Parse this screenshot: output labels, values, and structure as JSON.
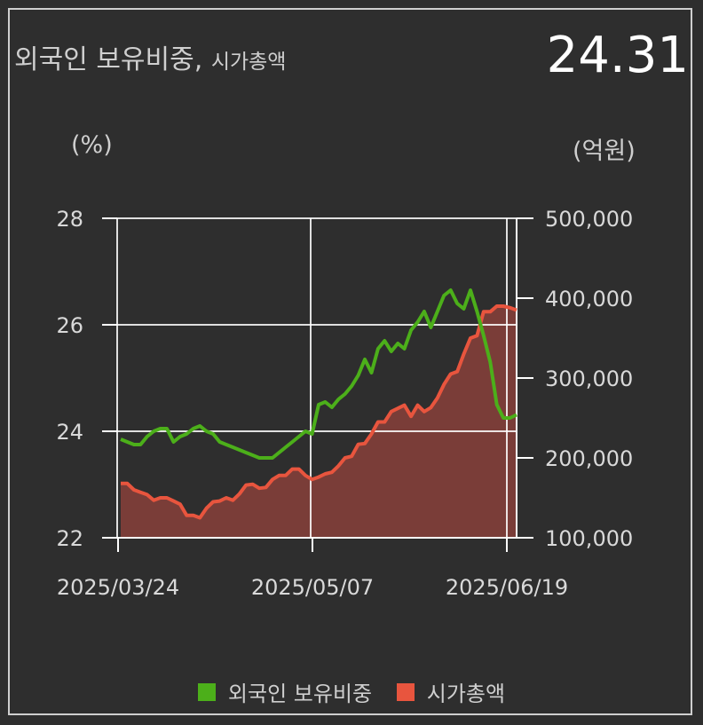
{
  "header": {
    "title": "외국인 보유비중,",
    "subtitle": "시가총액",
    "current_value": "24.31"
  },
  "axes": {
    "left_unit": "(%)",
    "right_unit": "(억원)"
  },
  "legend": {
    "items": [
      {
        "label": "외국인 보유비중",
        "color": "#4caf1a"
      },
      {
        "label": "시가총액",
        "color": "#e8553e"
      }
    ]
  },
  "chart_data": {
    "type": "line",
    "x_ticks": [
      "2025/03/24",
      "2025/05/07",
      "2025/06/19"
    ],
    "y_left": {
      "ticks": [
        "22",
        "24",
        "26",
        "28"
      ],
      "ylim": [
        22,
        28
      ]
    },
    "y_right": {
      "ticks": [
        "100,000",
        "200,000",
        "300,000",
        "400,000",
        "500,000"
      ],
      "ylim": [
        100000,
        500000
      ]
    },
    "grid": true,
    "series": [
      {
        "name": "외국인 보유비중",
        "axis": "left",
        "color": "#4caf1a",
        "values": [
          23.85,
          23.8,
          23.75,
          23.75,
          23.9,
          24.0,
          24.05,
          24.05,
          23.8,
          23.9,
          23.95,
          24.05,
          24.1,
          24.0,
          23.95,
          23.8,
          23.75,
          23.7,
          23.65,
          23.6,
          23.55,
          23.5,
          23.5,
          23.5,
          23.6,
          23.7,
          23.8,
          23.9,
          24.0,
          23.95,
          24.5,
          24.55,
          24.45,
          24.6,
          24.7,
          24.85,
          25.05,
          25.35,
          25.1,
          25.55,
          25.7,
          25.5,
          25.65,
          25.55,
          25.9,
          26.05,
          26.25,
          25.95,
          26.25,
          26.55,
          26.65,
          26.4,
          26.3,
          26.65,
          26.25,
          25.8,
          25.3,
          24.5,
          24.25,
          24.25,
          24.31
        ]
      },
      {
        "name": "시가총액",
        "axis": "right",
        "color": "#e8553e",
        "fill": "#7a3d38",
        "values": [
          168000,
          168000,
          160000,
          157000,
          154000,
          147000,
          150000,
          150000,
          146000,
          142000,
          128000,
          128000,
          125000,
          137000,
          145000,
          146000,
          150000,
          147000,
          155000,
          166000,
          167000,
          162000,
          163000,
          173000,
          178000,
          178000,
          186000,
          186000,
          178000,
          173000,
          176000,
          180000,
          182000,
          190000,
          200000,
          202000,
          217000,
          218000,
          230000,
          245000,
          245000,
          258000,
          262000,
          266000,
          252000,
          266000,
          258000,
          263000,
          275000,
          292000,
          305000,
          308000,
          330000,
          350000,
          353000,
          383000,
          383000,
          390000,
          390000,
          388000,
          385000
        ]
      }
    ]
  }
}
